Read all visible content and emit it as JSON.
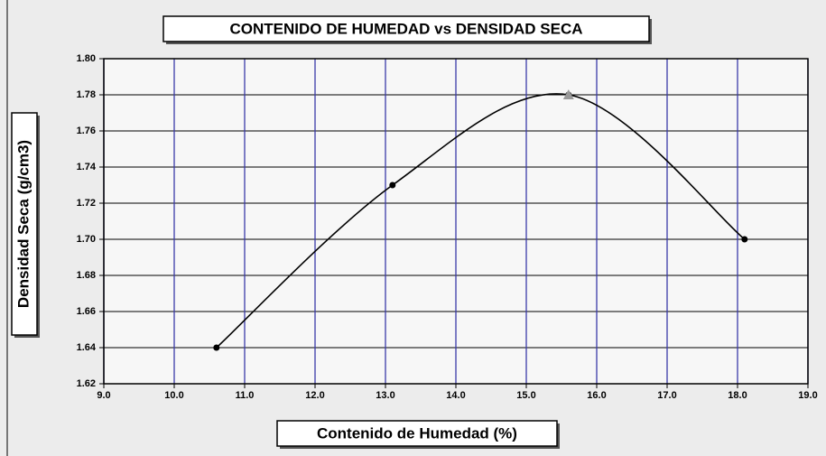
{
  "chart_data": {
    "type": "line",
    "title": "CONTENIDO DE HUMEDAD vs DENSIDAD SECA",
    "x_label": "Contenido de Humedad (%)",
    "y_label": "Densidad Seca (g/cm3)",
    "x": [
      10.6,
      13.1,
      15.6,
      18.1
    ],
    "values": [
      1.64,
      1.73,
      1.78,
      1.7
    ],
    "optimum": {
      "x": 15.6,
      "y": 1.78
    },
    "color": "#000000",
    "xlim": [
      9,
      19
    ],
    "xticks": [
      {
        "value": 9,
        "label": "9.0"
      },
      {
        "value": 10,
        "label": "10.0"
      },
      {
        "value": 11,
        "label": "11.0"
      },
      {
        "value": 12,
        "label": "12.0"
      },
      {
        "value": 13,
        "label": "13.0"
      },
      {
        "value": 14,
        "label": "14.0"
      },
      {
        "value": 15,
        "label": "15.0"
      },
      {
        "value": 16,
        "label": "16.0"
      },
      {
        "value": 17,
        "label": "17.0"
      },
      {
        "value": 18,
        "label": "18.0"
      },
      {
        "value": 19,
        "label": "19.0"
      }
    ],
    "ylim": [
      1.62,
      1.8
    ],
    "yticks": [
      1.62,
      1.64,
      1.66,
      1.68,
      {
        "value": 1.7,
        "label": "1.70"
      },
      1.72,
      1.74,
      1.76,
      1.78,
      {
        "value": 1.8,
        "label": "1.80"
      }
    ],
    "grid": true,
    "smooth": true
  }
}
